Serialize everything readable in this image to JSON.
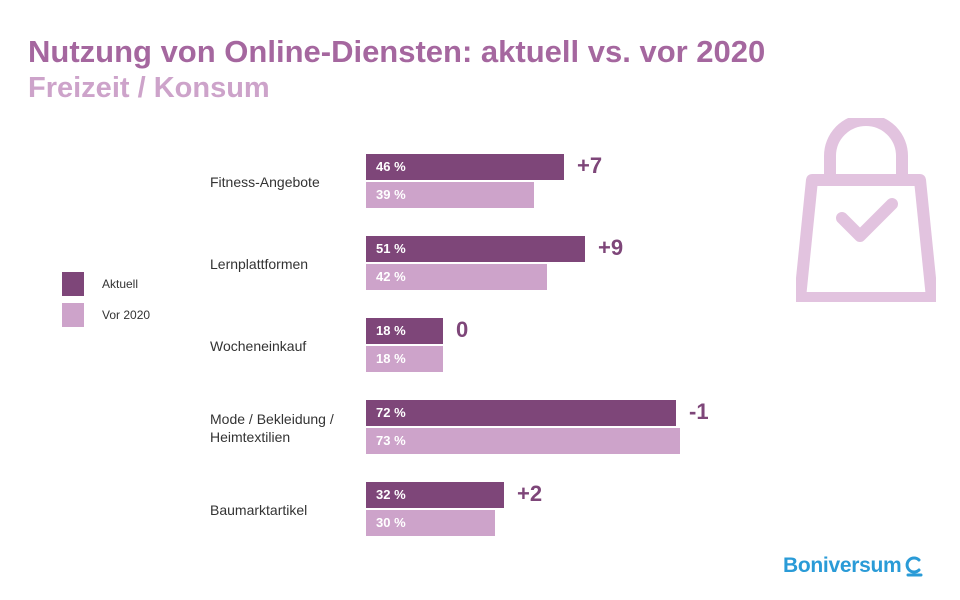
{
  "header": {
    "title": "Nutzung von Online-Diensten: aktuell vs. vor 2020",
    "subtitle": "Freizeit / Konsum"
  },
  "legend": {
    "items": [
      {
        "label": "Aktuell",
        "color": "#7e4679"
      },
      {
        "label": "Vor 2020",
        "color": "#cda3ca"
      }
    ]
  },
  "chart_data": {
    "type": "bar",
    "orientation": "horizontal",
    "title": "Nutzung von Online-Diensten: aktuell vs. vor 2020",
    "subtitle": "Freizeit / Konsum",
    "categories": [
      "Fitness-Angebote",
      "Lernplattformen",
      "Wocheneinkauf",
      "Mode / Bekleidung / Heimtextilien",
      "Baumarktartikel"
    ],
    "series": [
      {
        "name": "Aktuell",
        "values": [
          46,
          51,
          18,
          72,
          32
        ],
        "labels": [
          "46 %",
          "51 %",
          "18 %",
          "72 %",
          "32 %"
        ],
        "color": "#7e4679"
      },
      {
        "name": "Vor 2020",
        "values": [
          39,
          42,
          18,
          73,
          30
        ],
        "labels": [
          "39 %",
          "42 %",
          "18 %",
          "73 %",
          "30 %"
        ],
        "color": "#cda3ca"
      }
    ],
    "annotations": [
      "+7",
      "+9",
      "0",
      "-1",
      "+2"
    ],
    "xlim": [
      0,
      100
    ],
    "grid": false,
    "legend_position": "left"
  },
  "icon": {
    "name": "shopping-bag-check-icon",
    "color": "#e2c3df"
  },
  "brand": {
    "name": "Boniversum",
    "color": "#2a9bd7"
  }
}
